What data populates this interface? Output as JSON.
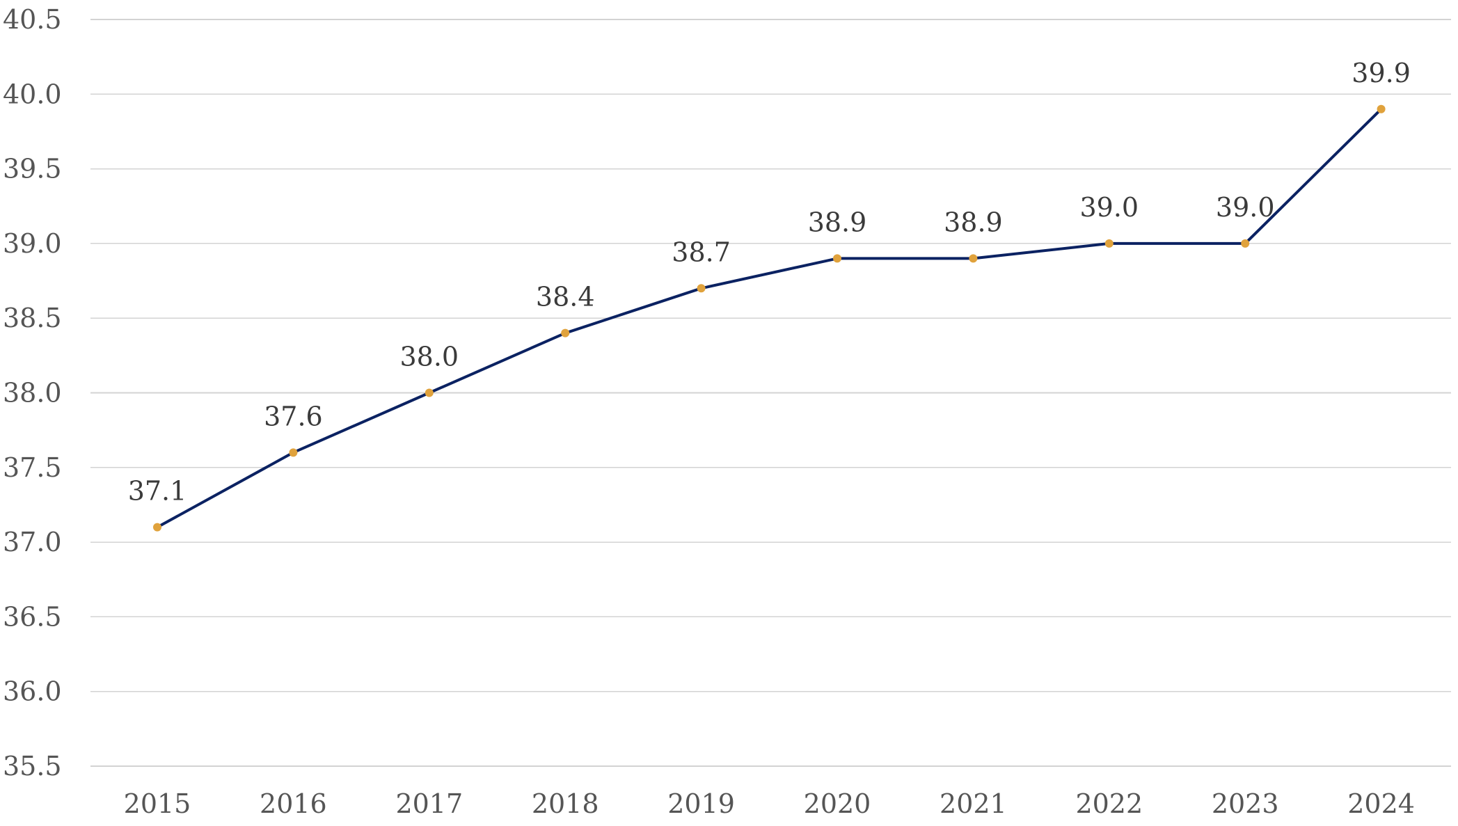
{
  "chart_data": {
    "type": "line",
    "title": "",
    "xlabel": "",
    "ylabel": "",
    "categories": [
      "2015",
      "2016",
      "2017",
      "2018",
      "2019",
      "2020",
      "2021",
      "2022",
      "2023",
      "2024"
    ],
    "series": [
      {
        "values": [
          37.1,
          37.6,
          38.0,
          38.4,
          38.7,
          38.9,
          38.9,
          39.0,
          39.0,
          39.9
        ],
        "data_labels": [
          "37.1",
          "37.6",
          "38.0",
          "38.4",
          "38.7",
          "38.9",
          "38.9",
          "39.0",
          "39.0",
          "39.9"
        ]
      }
    ],
    "ylim": [
      35.5,
      40.5
    ],
    "y_ticks": [
      35.5,
      36.0,
      36.5,
      37.0,
      37.5,
      38.0,
      38.5,
      39.0,
      39.5,
      40.0,
      40.5
    ],
    "y_tick_labels": [
      "35.5",
      "36.0",
      "36.5",
      "37.0",
      "37.5",
      "38.0",
      "38.5",
      "39.0",
      "39.5",
      "40.0",
      "40.5"
    ],
    "grid": true,
    "legend": "none",
    "colors": {
      "line": "#0b2262",
      "marker": "#e0a23c",
      "grid": "#d3d3d3",
      "tick_text": "#555555",
      "label_text": "#3a3a3a"
    }
  }
}
